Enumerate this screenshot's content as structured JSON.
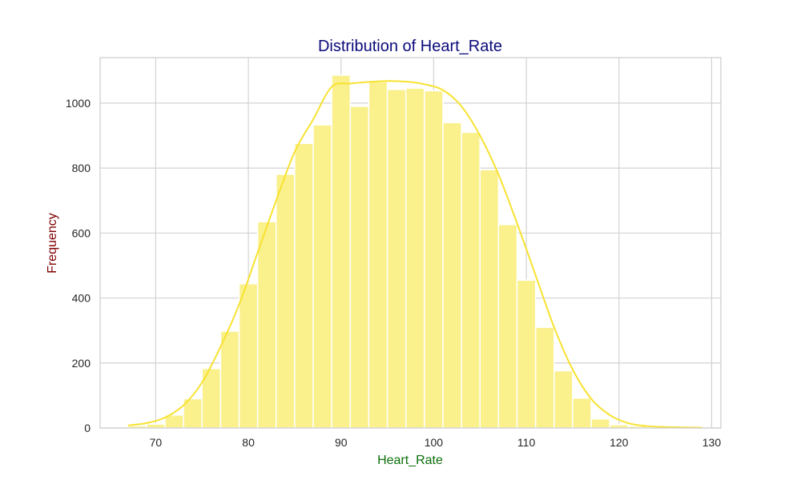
{
  "chart_data": {
    "type": "bar",
    "subtype": "histogram-with-kde",
    "title": "Distribution of Heart_Rate",
    "xlabel": "Heart_Rate",
    "ylabel": "Frequency",
    "xlim": [
      64,
      131
    ],
    "ylim": [
      0,
      1140
    ],
    "xticks": [
      70,
      80,
      90,
      100,
      110,
      120,
      130
    ],
    "yticks": [
      0,
      200,
      400,
      600,
      800,
      1000
    ],
    "grid": true,
    "bin_edges": [
      67,
      69,
      71,
      73,
      75,
      77,
      79,
      81,
      83,
      85,
      87,
      89,
      91,
      93,
      95,
      97,
      99,
      101,
      103,
      105,
      107,
      109,
      111,
      113,
      115,
      117,
      119,
      121,
      123,
      125,
      127,
      129
    ],
    "counts": [
      7,
      12,
      40,
      90,
      183,
      298,
      444,
      635,
      781,
      876,
      933,
      1086,
      990,
      1066,
      1042,
      1046,
      1038,
      940,
      910,
      795,
      626,
      455,
      310,
      176,
      92,
      28,
      10,
      6,
      3,
      2,
      1
    ],
    "kde": {
      "x": [
        67,
        69,
        71,
        73,
        75,
        77,
        79,
        81,
        83,
        85,
        87,
        89,
        91,
        93,
        95,
        97,
        99,
        101,
        103,
        105,
        107,
        109,
        111,
        113,
        115,
        117,
        119,
        121,
        123,
        125,
        127,
        129
      ],
      "y": [
        8,
        15,
        32,
        70,
        140,
        250,
        380,
        540,
        700,
        850,
        950,
        1050,
        1060,
        1065,
        1068,
        1066,
        1058,
        1040,
        990,
        900,
        780,
        630,
        470,
        310,
        180,
        90,
        40,
        15,
        6,
        3,
        2,
        1
      ]
    },
    "colors": {
      "bar_fill": "#faf08c",
      "bar_edge": "#ffffff",
      "kde_line": "#f7e231",
      "title": "#0a0a7a",
      "xlabel": "#0a6e0a",
      "ylabel": "#7f0000",
      "grid": "#d3d3d3",
      "frame": "#cccccc",
      "tick_text": "#262626"
    }
  }
}
